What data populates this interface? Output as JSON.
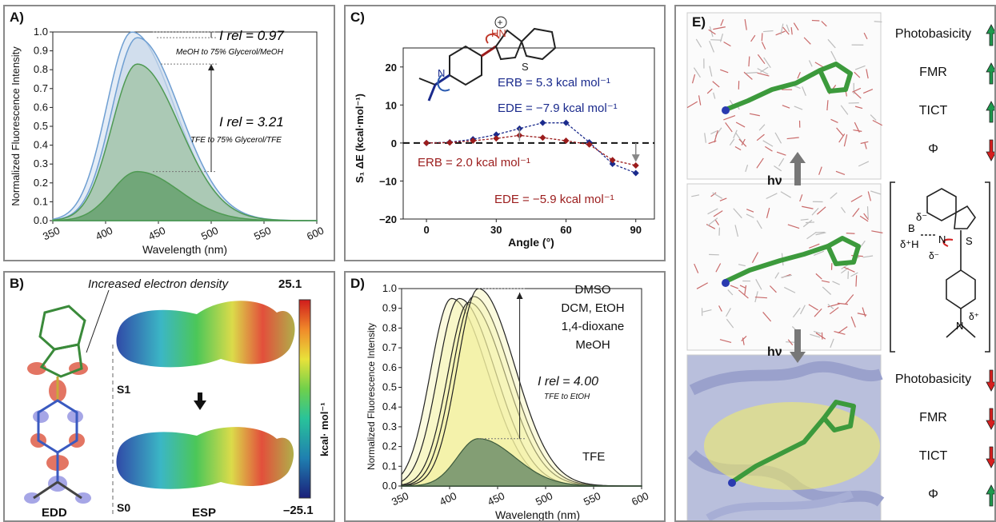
{
  "panelA": {
    "label": "A)",
    "xlabel": "Wavelength (nm)",
    "ylabel": "Normalized Fluorescence Intensity",
    "xticks": [
      "350",
      "400",
      "450",
      "500",
      "550",
      "600"
    ],
    "yticks": [
      "0.0",
      "0.1",
      "0.2",
      "0.3",
      "0.4",
      "0.5",
      "0.6",
      "0.7",
      "0.8",
      "0.9",
      "1.0"
    ],
    "ann1_value": "I rel = 0.97",
    "ann1_sub": "MeOH to 75% Glycerol/MeOH",
    "ann2_value": "I rel = 3.21",
    "ann2_sub": "TFE to 75% Glycerol/TFE"
  },
  "panelB": {
    "label": "B)",
    "callout": "Increased electron density",
    "edd_label": "EDD",
    "esp_label": "ESP",
    "s1_label": "S1",
    "s0_label": "S0",
    "scale_max": "25.1",
    "scale_min": "–25.1",
    "scale_unit": "kcal· mol⁻¹"
  },
  "panelC": {
    "label": "C)",
    "xlabel": "Angle (°)",
    "ylabel": "S₁ ΔE (kcal·mol⁻¹)",
    "xticks": [
      "0",
      "30",
      "60",
      "90"
    ],
    "yticks": [
      "20",
      "10",
      "0",
      "−10",
      "−20"
    ],
    "erb_blue": "ERB = 5.3 kcal mol⁻¹",
    "ede_blue": "EDE = −7.9 kcal mol⁻¹",
    "erb_red": "ERB = 2.0 kcal mol⁻¹",
    "ede_red": "EDE = −5.9 kcal mol⁻¹",
    "colors": {
      "blue": "#1a2a8c",
      "red": "#9b1c1c"
    }
  },
  "panelD": {
    "label": "D)",
    "xlabel": "Wavelength (nm)",
    "ylabel": "Normalized Fluorescence Intensity",
    "xticks": [
      "350",
      "400",
      "450",
      "500",
      "550",
      "600"
    ],
    "yticks": [
      "0.0",
      "0.1",
      "0.2",
      "0.3",
      "0.4",
      "0.5",
      "0.6",
      "0.7",
      "0.8",
      "0.9",
      "1.0"
    ],
    "solvents": [
      "DMSO",
      "DCM, EtOH",
      "1,4-dioxane",
      "MeOH"
    ],
    "tfe": "TFE",
    "ann_value": "I rel = 4.00",
    "ann_sub": "TFE to EtOH"
  },
  "panelE": {
    "label": "E)",
    "hv": "hν",
    "top_props": [
      {
        "name": "Photobasicity",
        "dir": "up"
      },
      {
        "name": "FMR",
        "dir": "up"
      },
      {
        "name": "TICT",
        "dir": "up"
      },
      {
        "name": "Φ",
        "dir": "down"
      }
    ],
    "bottom_props": [
      {
        "name": "Photobasicity",
        "dir": "down"
      },
      {
        "name": "FMR",
        "dir": "down"
      },
      {
        "name": "TICT",
        "dir": "down"
      },
      {
        "name": "Φ",
        "dir": "up"
      }
    ]
  },
  "chart_data": [
    {
      "type": "area",
      "panel": "A",
      "xlabel": "Wavelength (nm)",
      "ylabel": "Normalized Fluorescence Intensity",
      "xlim": [
        350,
        600
      ],
      "ylim": [
        0,
        1.0
      ],
      "series": [
        {
          "peak_x": 425,
          "peak_y": 1.0,
          "color": "#6f9fd2"
        },
        {
          "peak_x": 430,
          "peak_y": 0.97,
          "color": "#6f9fd2"
        },
        {
          "peak_x": 430,
          "peak_y": 0.83,
          "color": "#4f9a53"
        },
        {
          "peak_x": 430,
          "peak_y": 0.26,
          "color": "#4f9a53"
        }
      ]
    },
    {
      "type": "line",
      "panel": "C",
      "xlabel": "Angle (°)",
      "ylabel": "S₁ ΔE (kcal·mol⁻¹)",
      "xlim": [
        -10,
        98
      ],
      "ylim": [
        -20,
        25
      ],
      "series": [
        {
          "color": "#1a2a8c",
          "x": [
            0,
            10,
            20,
            30,
            40,
            50,
            60,
            70,
            80,
            90
          ],
          "y": [
            0,
            0.2,
            1.0,
            2.2,
            3.8,
            5.3,
            5.3,
            0.2,
            -5.5,
            -7.9
          ]
        },
        {
          "color": "#9b1c1c",
          "x": [
            0,
            10,
            20,
            30,
            40,
            50,
            60,
            70,
            80,
            90
          ],
          "y": [
            0,
            0.1,
            0.6,
            1.2,
            2.0,
            1.4,
            0.6,
            -0.4,
            -4.5,
            -5.9
          ]
        }
      ]
    },
    {
      "type": "area",
      "panel": "D",
      "xlabel": "Wavelength (nm)",
      "ylabel": "Normalized Fluorescence Intensity",
      "xlim": [
        350,
        600
      ],
      "ylim": [
        0,
        1.0
      ],
      "series": [
        {
          "peak_x": 402,
          "peak_y": 0.95
        },
        {
          "peak_x": 410,
          "peak_y": 0.95
        },
        {
          "peak_x": 420,
          "peak_y": 0.93
        },
        {
          "peak_x": 425,
          "peak_y": 0.96
        },
        {
          "peak_x": 430,
          "peak_y": 1.0
        },
        {
          "peak_x": 430,
          "peak_y": 0.24
        }
      ]
    }
  ]
}
